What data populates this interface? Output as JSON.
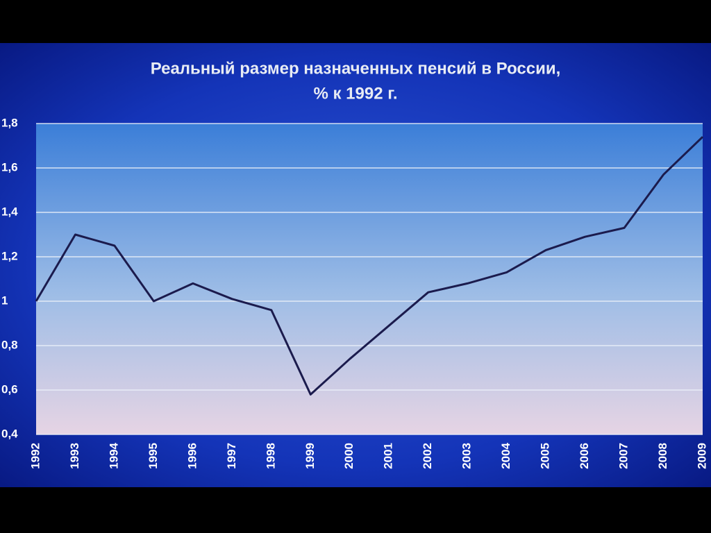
{
  "chart_data": {
    "type": "line",
    "title": "Реальный размер назначенных пенсий в России,",
    "subtitle": "% к 1992 г.",
    "categories": [
      "1992",
      "1993",
      "1994",
      "1995",
      "1996",
      "1997",
      "1998",
      "1999",
      "2000",
      "2001",
      "2002",
      "2003",
      "2004",
      "2005",
      "2006",
      "2007",
      "2008",
      "2009"
    ],
    "values": [
      1.0,
      1.3,
      1.25,
      1.0,
      1.08,
      1.01,
      0.96,
      0.58,
      0.74,
      0.89,
      1.04,
      1.08,
      1.13,
      1.23,
      1.29,
      1.33,
      1.57,
      1.74
    ],
    "color": "#1b1b4d",
    "ylim": [
      0.4,
      1.8
    ],
    "yticks": [
      {
        "value": 0.4,
        "label": "0,4"
      },
      {
        "value": 0.6,
        "label": "0,6"
      },
      {
        "value": 0.8,
        "label": "0,8"
      },
      1,
      {
        "value": 1.2,
        "label": "1,2"
      },
      {
        "value": 1.4,
        "label": "1,4"
      },
      {
        "value": 1.6,
        "label": "1,6"
      },
      {
        "value": 1.8,
        "label": "1,8"
      }
    ],
    "grid": true
  }
}
